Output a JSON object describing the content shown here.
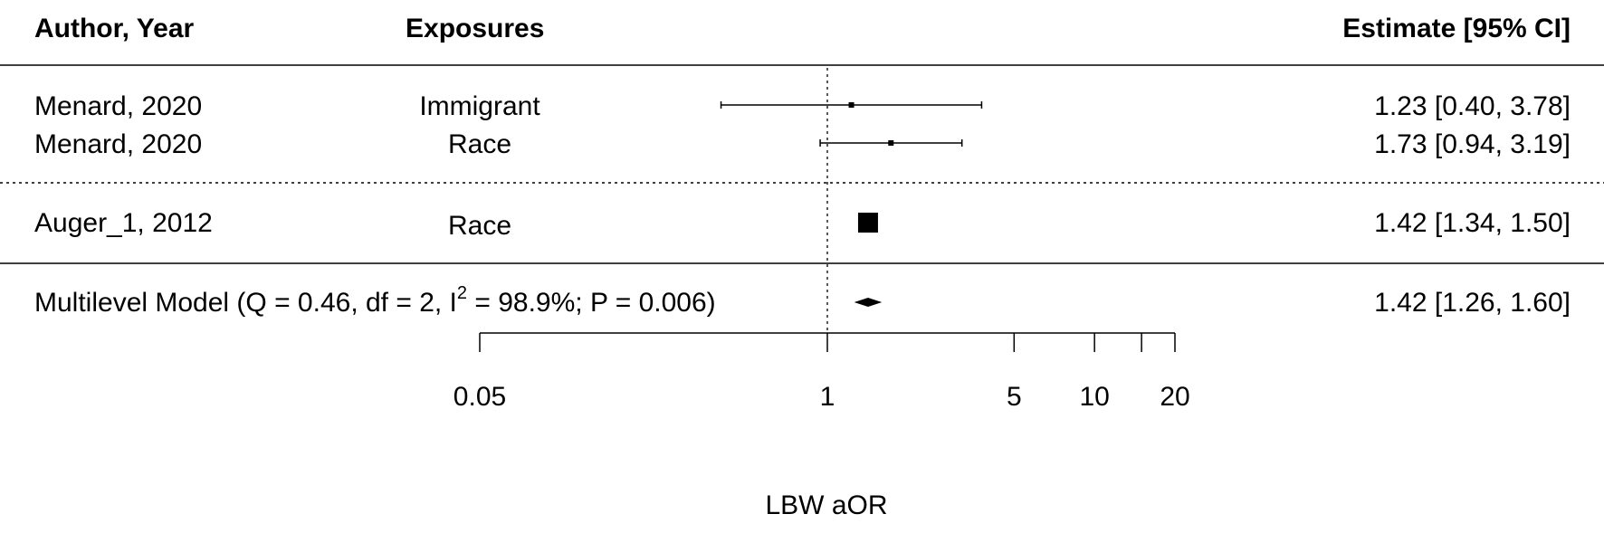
{
  "chart_data": {
    "type": "forest",
    "headers": {
      "study": "Author, Year",
      "exposure": "Exposures",
      "estimate": "Estimate [95% CI]"
    },
    "xlabel": "LBW aOR",
    "x_scale": "log",
    "xlim": [
      0.05,
      20
    ],
    "x_ticks": [
      0.05,
      1,
      5,
      10,
      15,
      20
    ],
    "x_tick_labels": [
      "0.05",
      "1",
      "5",
      "10",
      "",
      "20"
    ],
    "reference_line": 1,
    "groups": [
      {
        "studies": [
          {
            "study": "Menard, 2020",
            "exposure": "Immigrant",
            "estimate": 1.23,
            "lower": 0.4,
            "upper": 3.78,
            "label": "1.23 [0.40, 3.78]"
          },
          {
            "study": "Menard, 2020",
            "exposure": "Race",
            "estimate": 1.73,
            "lower": 0.94,
            "upper": 3.19,
            "label": "1.73 [0.94, 3.19]"
          }
        ]
      },
      {
        "studies": [
          {
            "study": "Auger_1, 2012",
            "exposure": "Race",
            "estimate": 1.42,
            "lower": 1.34,
            "upper": 1.5,
            "label": "1.42 [1.34, 1.50]"
          }
        ]
      }
    ],
    "summary": {
      "label_prefix": "Multilevel Model (Q = 0.46, df = 2, I",
      "label_sup": "2",
      "label_suffix": " = 98.9%; P = 0.006)",
      "estimate": 1.42,
      "lower": 1.26,
      "upper": 1.6,
      "estimate_label": "1.42 [1.26, 1.60]"
    }
  }
}
